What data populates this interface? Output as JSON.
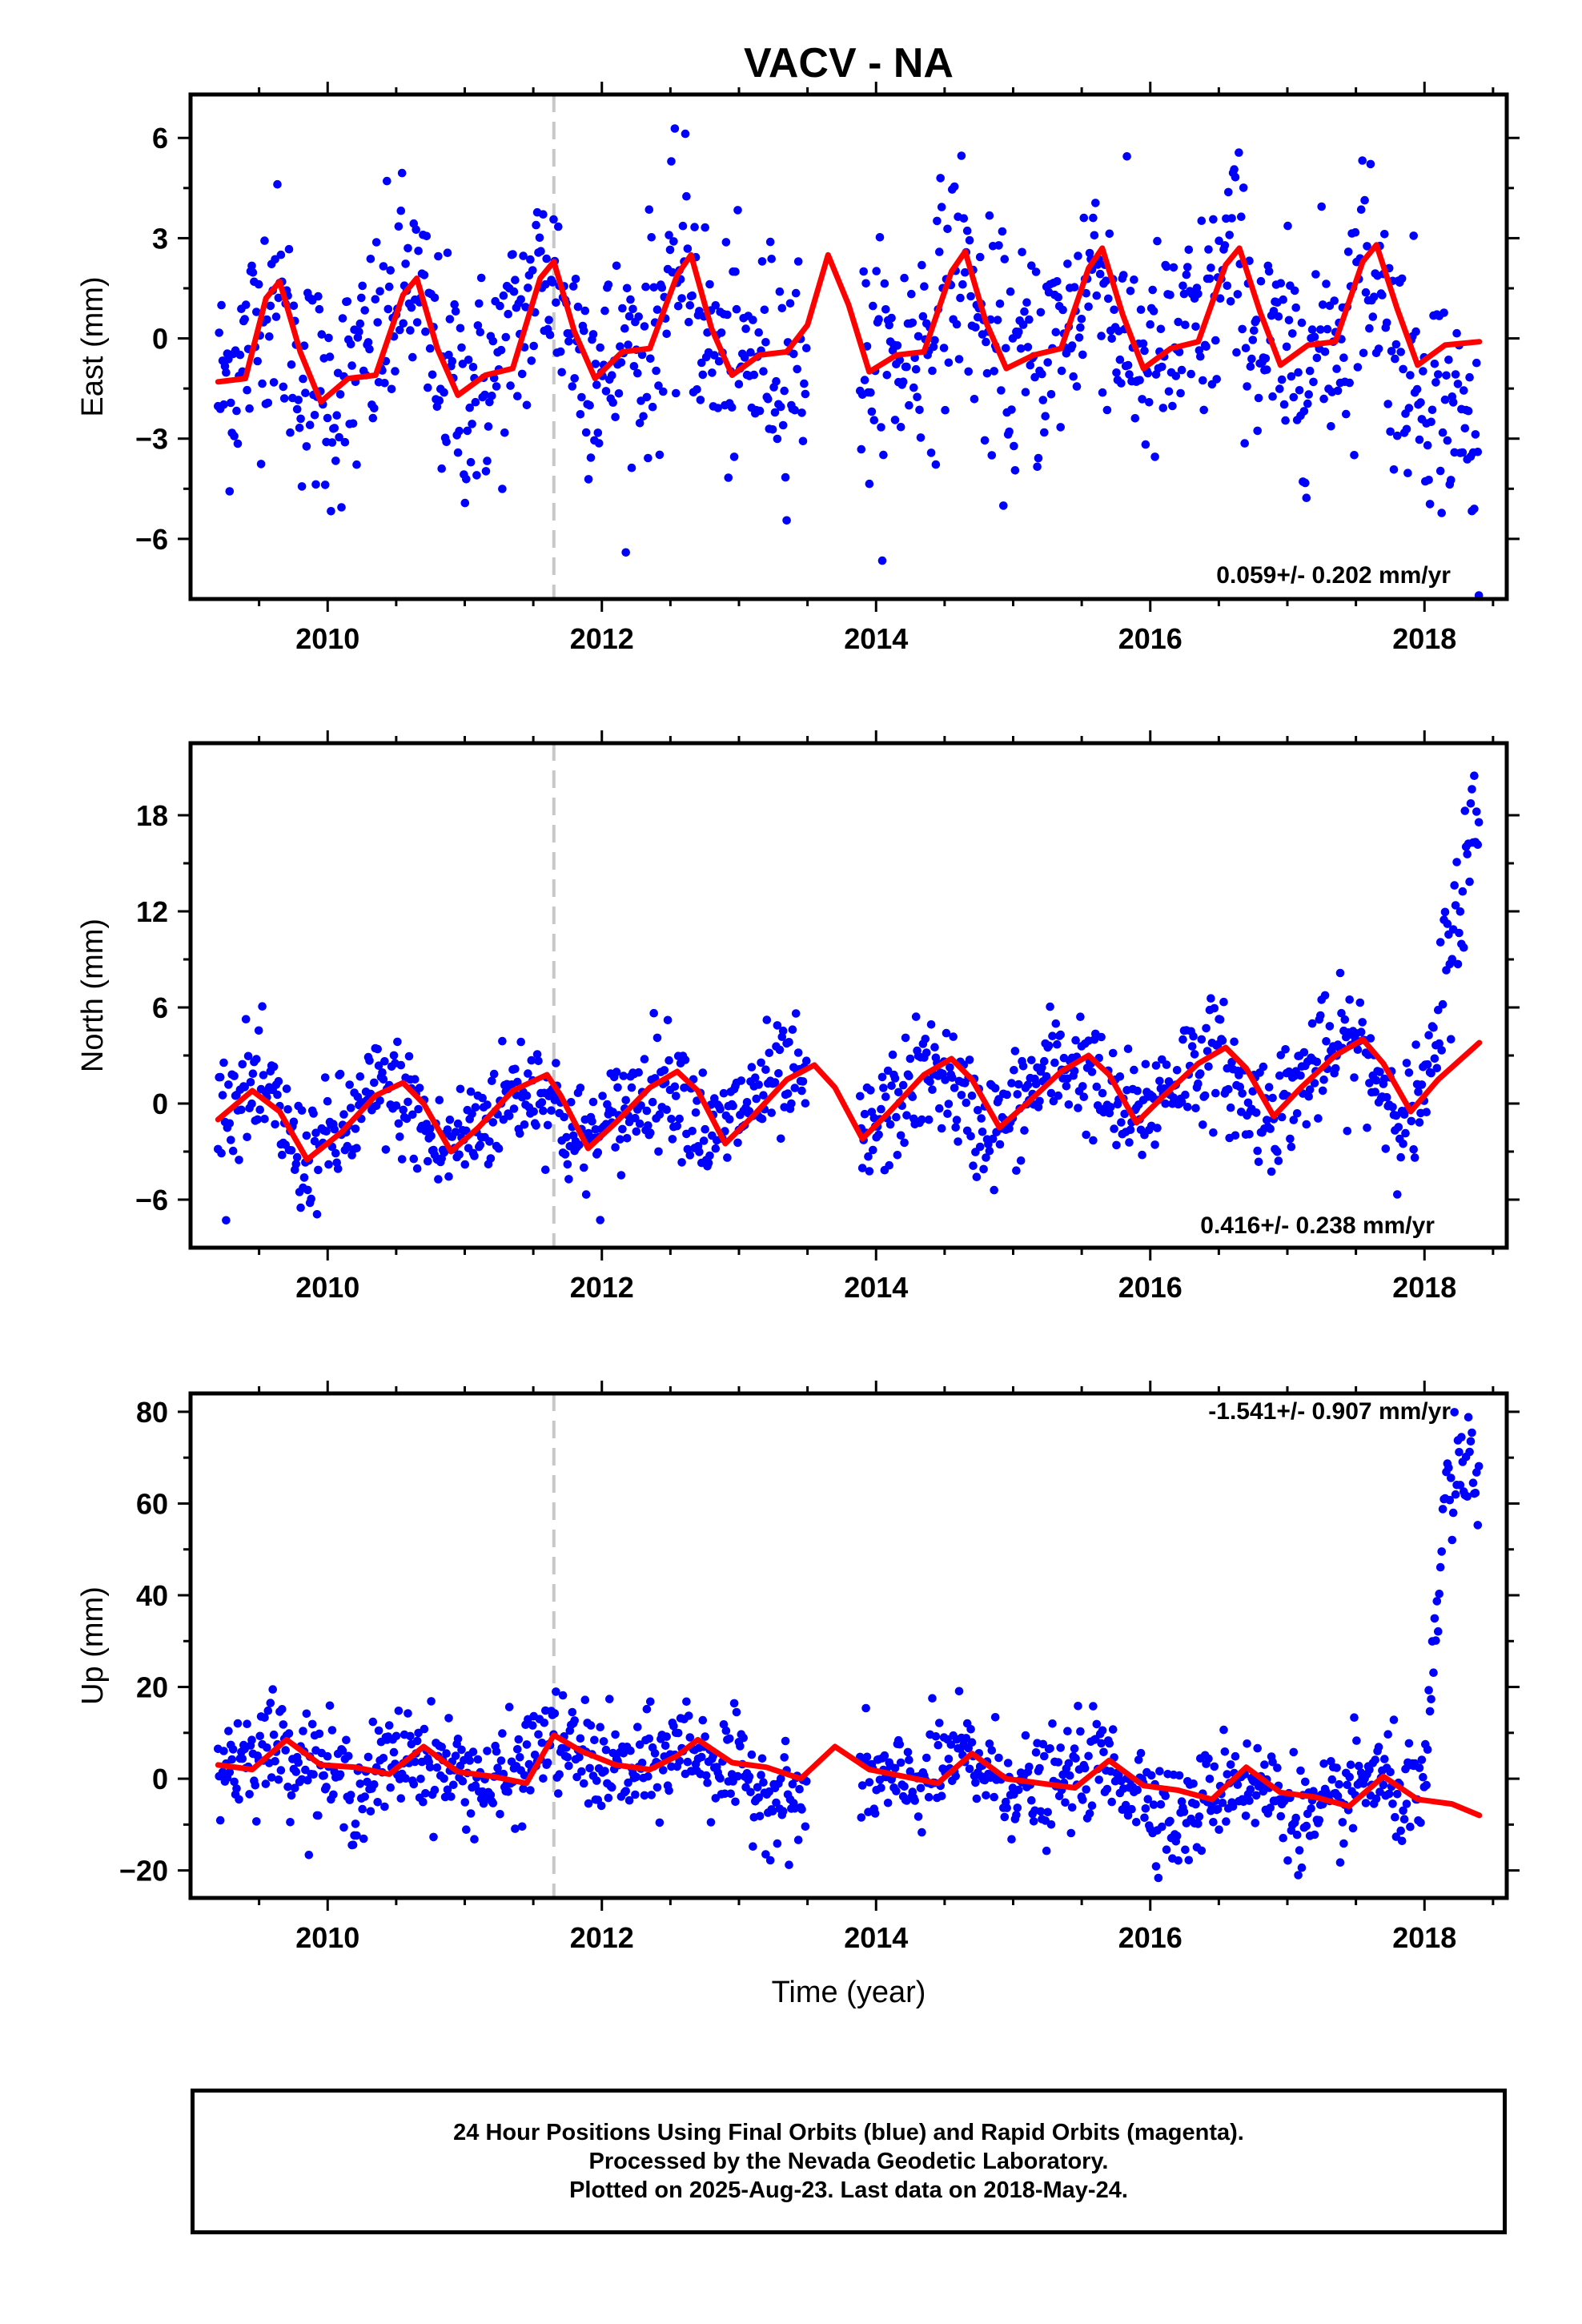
{
  "title": "VACV - NA",
  "colors": {
    "final_orbits": "#0000ff",
    "fit_line": "#ff0000",
    "equipment_change": "#c8c8c8"
  },
  "chart_data": [
    {
      "type": "scatter",
      "panel": "east",
      "title": "VACV - NA",
      "xlabel": "",
      "ylabel": "East (mm)",
      "xlim": [
        2009.0,
        2018.6
      ],
      "ylim": [
        -7.8,
        7.3
      ],
      "xticks": [
        2010,
        2012,
        2014,
        2016,
        2018
      ],
      "yticks": [
        6,
        3,
        0,
        -3,
        -6
      ],
      "ytick_labels": [
        "6",
        "3",
        "0",
        "−3",
        "−6"
      ],
      "rate_label": "0.059+/- 0.202 mm/yr",
      "vertical_line_x": 2011.65,
      "series": [
        {
          "role": "daily_positions",
          "x": [
            2009.2,
            2009.4,
            2009.6,
            2009.8,
            2010.0,
            2010.2,
            2010.4,
            2010.6,
            2010.8,
            2011.0,
            2011.2,
            2011.4,
            2011.6,
            2011.8,
            2012.0,
            2012.2,
            2012.4,
            2012.6,
            2012.8,
            2013.0,
            2013.2,
            2013.4,
            2014.0,
            2014.2,
            2014.4,
            2014.6,
            2014.8,
            2015.0,
            2015.2,
            2015.4,
            2015.6,
            2015.8,
            2016.0,
            2016.2,
            2016.4,
            2016.6,
            2016.8,
            2017.0,
            2017.2,
            2017.4,
            2017.6,
            2017.8,
            2018.0,
            2018.2,
            2018.4
          ],
          "y": [
            -1.5,
            -0.5,
            1.6,
            -1.0,
            -1.8,
            -1.3,
            0.2,
            1.8,
            -0.8,
            -1.7,
            -1.2,
            0.4,
            2.2,
            0.1,
            -1.1,
            -0.4,
            0.2,
            2.4,
            -0.4,
            -0.9,
            -0.6,
            -0.5,
            -1.0,
            -0.5,
            0.3,
            2.5,
            -0.2,
            -0.9,
            -0.4,
            0.2,
            2.5,
            0.0,
            -0.8,
            -0.3,
            0.4,
            2.6,
            -0.2,
            -0.8,
            -0.3,
            0.3,
            2.7,
            -0.5,
            -1.3,
            -2.0,
            -3.6
          ],
          "spread": 1.7
        },
        {
          "role": "seasonal_fit",
          "x": [
            2009.2,
            2009.4,
            2009.55,
            2009.65,
            2009.8,
            2009.95,
            2010.15,
            2010.35,
            2010.55,
            2010.65,
            2010.8,
            2010.95,
            2011.15,
            2011.35,
            2011.55,
            2011.65,
            2011.8,
            2011.95,
            2012.15,
            2012.35,
            2012.55,
            2012.65,
            2012.8,
            2012.95,
            2013.15,
            2013.35,
            2013.5,
            2013.65,
            2013.8,
            2013.95,
            2014.15,
            2014.35,
            2014.55,
            2014.65,
            2014.8,
            2014.95,
            2015.15,
            2015.35,
            2015.55,
            2015.65,
            2015.8,
            2015.95,
            2016.15,
            2016.35,
            2016.55,
            2016.65,
            2016.8,
            2016.95,
            2017.15,
            2017.35,
            2017.55,
            2017.65,
            2017.8,
            2017.95,
            2018.15,
            2018.4
          ],
          "y": [
            -1.3,
            -1.2,
            1.2,
            1.7,
            -0.4,
            -1.9,
            -1.2,
            -1.1,
            1.3,
            1.8,
            -0.3,
            -1.7,
            -1.1,
            -0.9,
            1.8,
            2.3,
            0.2,
            -1.2,
            -0.4,
            -0.3,
            1.9,
            2.5,
            0.3,
            -1.1,
            -0.5,
            -0.4,
            0.4,
            2.5,
            1.0,
            -1.0,
            -0.5,
            -0.4,
            2.0,
            2.6,
            0.5,
            -0.9,
            -0.5,
            -0.3,
            2.1,
            2.7,
            0.7,
            -0.9,
            -0.3,
            -0.1,
            2.2,
            2.7,
            0.8,
            -0.8,
            -0.2,
            -0.1,
            2.3,
            2.8,
            0.9,
            -0.8,
            -0.2,
            -0.1
          ]
        }
      ]
    },
    {
      "type": "scatter",
      "panel": "north",
      "xlabel": "",
      "ylabel": "North (mm)",
      "xlim": [
        2009.0,
        2018.6
      ],
      "ylim": [
        -9.0,
        22.5
      ],
      "xticks": [
        2010,
        2012,
        2014,
        2016,
        2018
      ],
      "yticks": [
        18,
        12,
        6,
        0,
        -6
      ],
      "ytick_labels": [
        "18",
        "12",
        "6",
        "0",
        "−6"
      ],
      "rate_label": "0.416+/- 0.238 mm/yr",
      "vertical_line_x": 2011.65,
      "series": [
        {
          "role": "daily_positions",
          "x": [
            2009.2,
            2009.4,
            2009.6,
            2009.8,
            2010.0,
            2010.2,
            2010.4,
            2010.6,
            2010.8,
            2011.0,
            2011.2,
            2011.4,
            2011.6,
            2011.8,
            2012.0,
            2012.2,
            2012.4,
            2012.6,
            2012.8,
            2013.0,
            2013.2,
            2013.4,
            2013.9,
            2014.1,
            2014.3,
            2014.5,
            2014.7,
            2014.9,
            2015.1,
            2015.3,
            2015.5,
            2015.7,
            2015.9,
            2016.1,
            2016.3,
            2016.5,
            2016.7,
            2016.9,
            2017.1,
            2017.3,
            2017.5,
            2017.7,
            2017.9,
            2018.05,
            2018.2,
            2018.4
          ],
          "y": [
            -0.5,
            1.0,
            0.0,
            -3.5,
            -2.5,
            -1.0,
            1.0,
            0.0,
            -3.0,
            -2.0,
            -0.5,
            1.0,
            1.0,
            -2.5,
            -2.0,
            0.0,
            1.5,
            1.0,
            -2.5,
            -0.5,
            1.0,
            1.5,
            -2.5,
            -0.5,
            1.5,
            2.0,
            -1.0,
            -1.5,
            0.5,
            2.5,
            2.5,
            0.0,
            -1.0,
            1.0,
            2.5,
            3.0,
            0.0,
            -0.5,
            1.5,
            3.0,
            4.0,
            1.0,
            -1.0,
            1.5,
            11.0,
            18.0
          ],
          "spread": 1.8
        },
        {
          "role": "seasonal_fit",
          "x": [
            2009.2,
            2009.45,
            2009.65,
            2009.85,
            2010.1,
            2010.35,
            2010.55,
            2010.7,
            2010.9,
            2011.1,
            2011.35,
            2011.6,
            2011.7,
            2011.9,
            2012.1,
            2012.35,
            2012.55,
            2012.7,
            2012.9,
            2013.1,
            2013.35,
            2013.55,
            2013.7,
            2013.9,
            2014.1,
            2014.35,
            2014.55,
            2014.7,
            2014.9,
            2015.1,
            2015.35,
            2015.55,
            2015.7,
            2015.9,
            2016.1,
            2016.35,
            2016.55,
            2016.7,
            2016.9,
            2017.1,
            2017.35,
            2017.55,
            2017.7,
            2017.9,
            2018.1,
            2018.4
          ],
          "y": [
            -1.0,
            0.8,
            -0.5,
            -3.5,
            -1.8,
            0.5,
            1.3,
            0.0,
            -3.0,
            -1.5,
            0.8,
            1.8,
            0.5,
            -2.8,
            -1.2,
            1.0,
            2.0,
            0.8,
            -2.5,
            -0.8,
            1.5,
            2.4,
            1.0,
            -2.2,
            -0.5,
            1.8,
            2.8,
            1.5,
            -1.5,
            0.0,
            2.0,
            3.0,
            1.8,
            -1.2,
            0.5,
            2.5,
            3.5,
            2.2,
            -0.8,
            1.0,
            3.0,
            4.0,
            2.5,
            -0.5,
            1.5,
            3.8
          ]
        }
      ]
    },
    {
      "type": "scatter",
      "panel": "up",
      "xlabel": "Time (year)",
      "ylabel": "Up (mm)",
      "xlim": [
        2009.0,
        2018.6
      ],
      "ylim": [
        -26.0,
        84.0
      ],
      "xticks": [
        2010,
        2012,
        2014,
        2016,
        2018
      ],
      "yticks": [
        80,
        60,
        40,
        20,
        0,
        -20
      ],
      "ytick_labels": [
        "80",
        "60",
        "40",
        "20",
        "0",
        "−20"
      ],
      "rate_label": "-1.541+/- 0.907 mm/yr",
      "vertical_line_x": 2011.65,
      "series": [
        {
          "role": "daily_positions",
          "x": [
            2009.2,
            2009.4,
            2009.6,
            2009.8,
            2010.0,
            2010.2,
            2010.4,
            2010.6,
            2010.8,
            2011.0,
            2011.2,
            2011.4,
            2011.6,
            2011.8,
            2012.0,
            2012.2,
            2012.4,
            2012.6,
            2012.8,
            2013.0,
            2013.2,
            2013.4,
            2014.0,
            2014.2,
            2014.4,
            2014.6,
            2014.8,
            2015.0,
            2015.2,
            2015.4,
            2015.6,
            2015.8,
            2016.0,
            2016.2,
            2016.4,
            2016.6,
            2016.8,
            2017.0,
            2017.2,
            2017.4,
            2017.6,
            2017.8,
            2018.0,
            2018.15,
            2018.4
          ],
          "y": [
            3.0,
            5.0,
            8.0,
            5.0,
            2.0,
            -3.0,
            2.0,
            6.0,
            3.0,
            1.0,
            -2.0,
            2.0,
            9.0,
            6.0,
            3.0,
            1.0,
            3.0,
            8.0,
            4.0,
            1.0,
            -3.0,
            -5.0,
            0.0,
            -2.0,
            1.0,
            5.0,
            2.0,
            -1.0,
            -3.0,
            0.0,
            4.0,
            0.0,
            -3.0,
            -10.0,
            -5.0,
            1.0,
            -2.0,
            -5.0,
            -10.0,
            -5.0,
            1.0,
            -3.0,
            -5.0,
            62.0,
            70.0
          ],
          "spread": 5.5
        },
        {
          "role": "seasonal_fit",
          "x": [
            2009.2,
            2009.45,
            2009.7,
            2009.95,
            2010.2,
            2010.45,
            2010.7,
            2010.95,
            2011.2,
            2011.45,
            2011.65,
            2011.85,
            2012.1,
            2012.35,
            2012.55,
            2012.7,
            2012.95,
            2013.2,
            2013.45,
            2013.7,
            2013.95,
            2014.2,
            2014.45,
            2014.7,
            2014.95,
            2015.2,
            2015.45,
            2015.7,
            2015.95,
            2016.2,
            2016.45,
            2016.7,
            2016.95,
            2017.2,
            2017.45,
            2017.7,
            2017.95,
            2018.2,
            2018.4
          ],
          "y": [
            3.0,
            2.0,
            8.5,
            3.0,
            2.5,
            1.0,
            7.0,
            1.5,
            0.5,
            -1.0,
            9.5,
            6.0,
            3.0,
            2.0,
            5.0,
            8.5,
            3.5,
            2.5,
            0.0,
            7.0,
            2.0,
            0.5,
            -1.0,
            5.5,
            0.0,
            -1.0,
            -2.0,
            4.0,
            -1.5,
            -2.5,
            -4.5,
            2.5,
            -3.0,
            -4.0,
            -6.0,
            0.5,
            -4.5,
            -5.5,
            -8.0
          ]
        }
      ]
    }
  ],
  "footer": {
    "line1": "24 Hour Positions Using Final Orbits (blue) and Rapid Orbits (magenta).",
    "line2": "Processed by the Nevada Geodetic Laboratory.",
    "line3": "Plotted on 2025-Aug-23. Last data on 2018-May-24."
  }
}
